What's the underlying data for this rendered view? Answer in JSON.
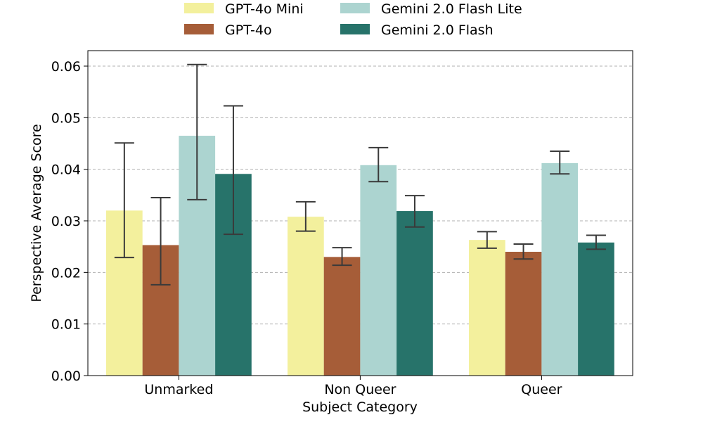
{
  "chart_data": {
    "type": "bar",
    "title": "",
    "xlabel": "Subject Category",
    "ylabel": "Perspective Average Score",
    "ylim": [
      0,
      0.063
    ],
    "yticks": [
      "0.00",
      "0.01",
      "0.02",
      "0.03",
      "0.04",
      "0.05",
      "0.06"
    ],
    "ytick_values": [
      0,
      0.01,
      0.02,
      0.03,
      0.04,
      0.05,
      0.06
    ],
    "grid": "y-dashed",
    "legend_placement": "top-center",
    "categories": [
      "Unmarked",
      "Non Queer",
      "Queer"
    ],
    "series": [
      {
        "name": "GPT-4o Mini",
        "color": "#f3f09d",
        "values": [
          0.032,
          0.0308,
          0.0263
        ],
        "err_low": [
          0.0229,
          0.028,
          0.0247
        ],
        "err_high": [
          0.0451,
          0.0337,
          0.0279
        ]
      },
      {
        "name": "GPT-4o",
        "color": "#a65d38",
        "values": [
          0.0253,
          0.023,
          0.024
        ],
        "err_low": [
          0.0176,
          0.0214,
          0.0226
        ],
        "err_high": [
          0.0345,
          0.0248,
          0.0255
        ]
      },
      {
        "name": "Gemini 2.0 Flash Lite",
        "color": "#acd4d0",
        "values": [
          0.0465,
          0.0408,
          0.0412
        ],
        "err_low": [
          0.0341,
          0.0376,
          0.0391
        ],
        "err_high": [
          0.0603,
          0.0442,
          0.0435
        ]
      },
      {
        "name": "Gemini 2.0 Flash",
        "color": "#27736a",
        "values": [
          0.0391,
          0.0319,
          0.0258
        ],
        "err_low": [
          0.0274,
          0.0288,
          0.0245
        ],
        "err_high": [
          0.0523,
          0.0349,
          0.0272
        ]
      }
    ]
  }
}
